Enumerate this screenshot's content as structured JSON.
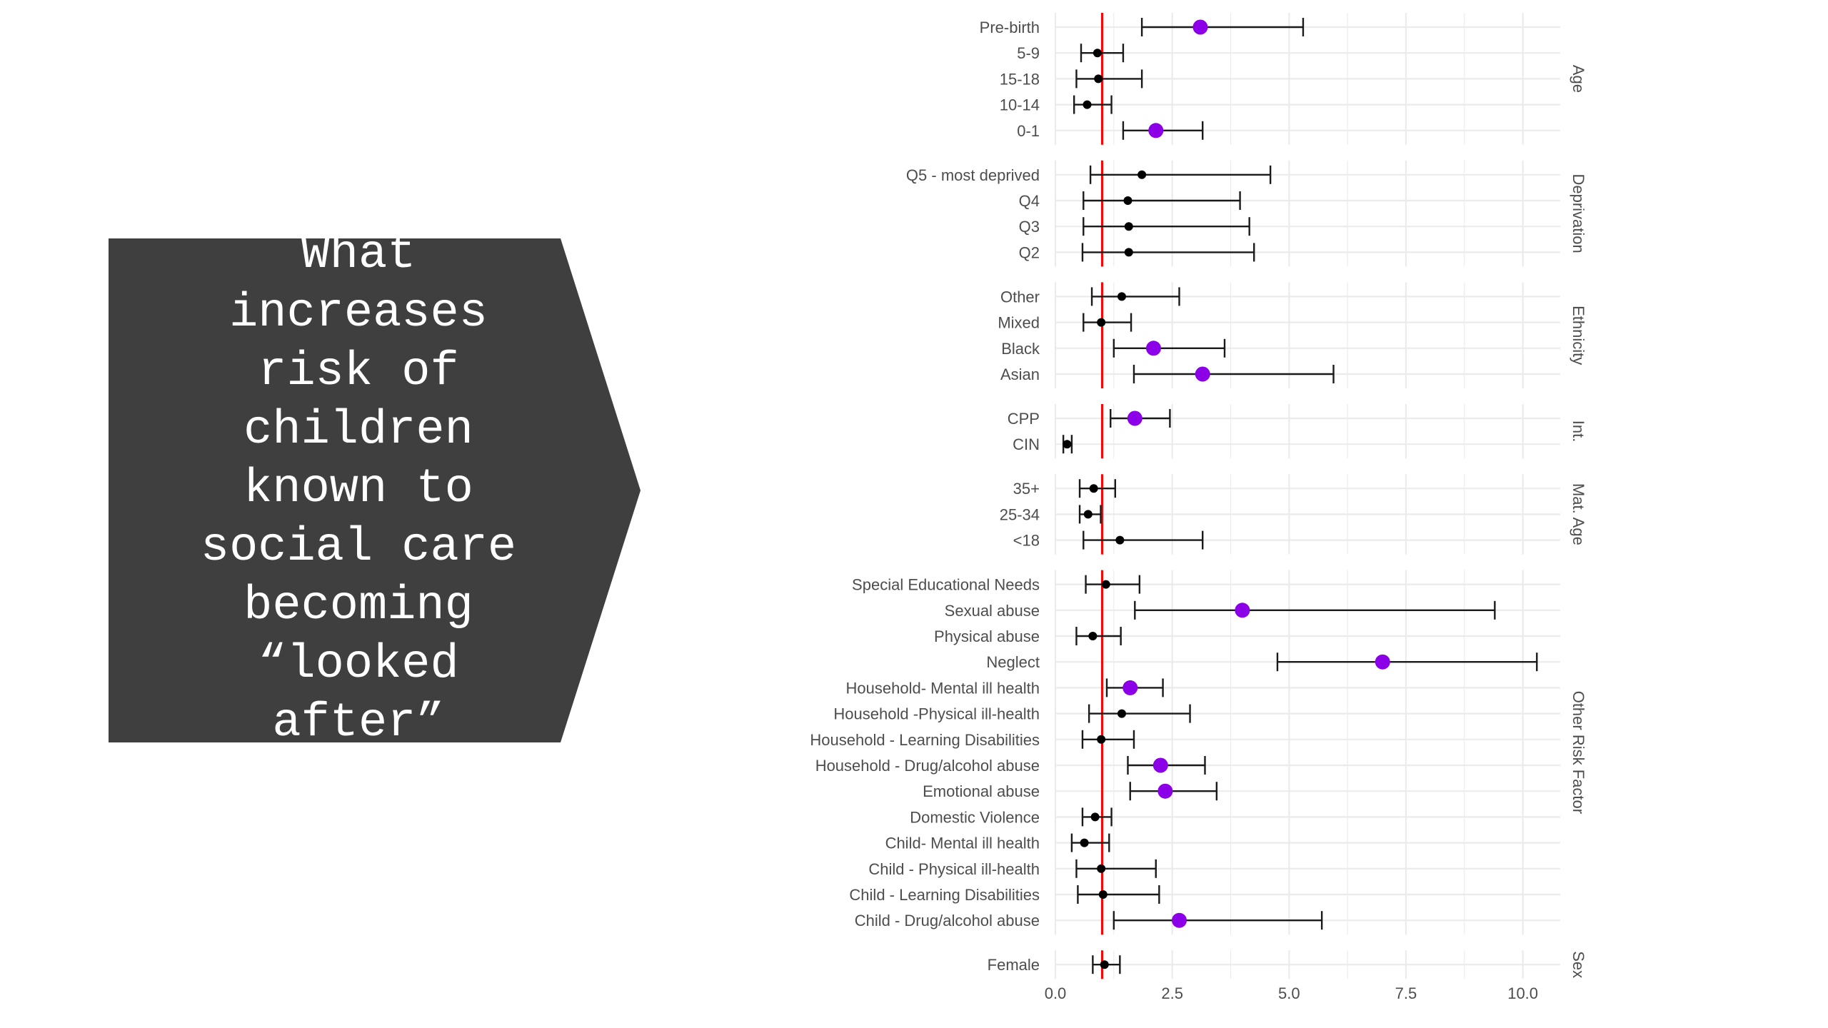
{
  "slide": {
    "title_text": "What\nincreases\nrisk of\nchildren\nknown to\nsocial care\nbecoming\n“looked\nafter”"
  },
  "colors": {
    "title_bg": "#3f3f3f",
    "title_fg": "#ffffff",
    "reference_line": "#ff0000",
    "significant_point": "#8b00e6",
    "nonsignificant_point": "#000000",
    "grid": "#ebebeb"
  },
  "chart_data": {
    "type": "scatter",
    "subtype": "forest-plot-with-error-bars",
    "title": "",
    "xlabel": "",
    "ylabel": "",
    "xlim": [
      0,
      10.8
    ],
    "x_ticks": [
      0.0,
      2.5,
      5.0,
      7.5,
      10.0
    ],
    "x_tick_labels": [
      "0.0",
      "2.5",
      "5.0",
      "7.5",
      "10.0"
    ],
    "reference_line_x": 1,
    "grid": true,
    "facets": [
      {
        "name": "Age",
        "rows": [
          {
            "label": "Pre-birth",
            "estimate": 3.1,
            "lower": 1.85,
            "upper": 5.3,
            "significant": true
          },
          {
            "label": "5-9",
            "estimate": 0.9,
            "lower": 0.55,
            "upper": 1.45,
            "significant": false
          },
          {
            "label": "15-18",
            "estimate": 0.92,
            "lower": 0.45,
            "upper": 1.85,
            "significant": false
          },
          {
            "label": "10-14",
            "estimate": 0.68,
            "lower": 0.4,
            "upper": 1.2,
            "significant": false
          },
          {
            "label": "0-1",
            "estimate": 2.15,
            "lower": 1.45,
            "upper": 3.15,
            "significant": true
          }
        ]
      },
      {
        "name": "Deprivation",
        "rows": [
          {
            "label": "Q5 - most deprived",
            "estimate": 1.85,
            "lower": 0.75,
            "upper": 4.6,
            "significant": false
          },
          {
            "label": "Q4",
            "estimate": 1.55,
            "lower": 0.6,
            "upper": 3.95,
            "significant": false
          },
          {
            "label": "Q3",
            "estimate": 1.57,
            "lower": 0.6,
            "upper": 4.15,
            "significant": false
          },
          {
            "label": "Q2",
            "estimate": 1.57,
            "lower": 0.58,
            "upper": 4.25,
            "significant": false
          }
        ]
      },
      {
        "name": "Ethnicity",
        "rows": [
          {
            "label": "Other",
            "estimate": 1.42,
            "lower": 0.78,
            "upper": 2.65,
            "significant": false
          },
          {
            "label": "Mixed",
            "estimate": 0.98,
            "lower": 0.6,
            "upper": 1.62,
            "significant": false
          },
          {
            "label": "Black",
            "estimate": 2.1,
            "lower": 1.25,
            "upper": 3.62,
            "significant": true
          },
          {
            "label": "Asian",
            "estimate": 3.15,
            "lower": 1.68,
            "upper": 5.95,
            "significant": true
          }
        ]
      },
      {
        "name": "Int.",
        "rows": [
          {
            "label": "CPP",
            "estimate": 1.7,
            "lower": 1.18,
            "upper": 2.45,
            "significant": true
          },
          {
            "label": "CIN",
            "estimate": 0.25,
            "lower": 0.17,
            "upper": 0.35,
            "significant": false
          }
        ]
      },
      {
        "name": "Mat. Age",
        "rows": [
          {
            "label": "35+",
            "estimate": 0.82,
            "lower": 0.52,
            "upper": 1.28,
            "significant": false
          },
          {
            "label": "25-34",
            "estimate": 0.7,
            "lower": 0.52,
            "upper": 0.97,
            "significant": false
          },
          {
            "label": "<18",
            "estimate": 1.38,
            "lower": 0.6,
            "upper": 3.15,
            "significant": false
          }
        ]
      },
      {
        "name": "Other Risk Factor",
        "rows": [
          {
            "label": "Special Educational Needs",
            "estimate": 1.08,
            "lower": 0.65,
            "upper": 1.8,
            "significant": false
          },
          {
            "label": "Sexual abuse",
            "estimate": 4.0,
            "lower": 1.7,
            "upper": 9.4,
            "significant": true
          },
          {
            "label": "Physical abuse",
            "estimate": 0.8,
            "lower": 0.45,
            "upper": 1.4,
            "significant": false
          },
          {
            "label": "Neglect",
            "estimate": 7.0,
            "lower": 4.75,
            "upper": 10.3,
            "significant": true
          },
          {
            "label": "Household- Mental ill health",
            "estimate": 1.6,
            "lower": 1.1,
            "upper": 2.3,
            "significant": true
          },
          {
            "label": "Household -Physical ill-health",
            "estimate": 1.42,
            "lower": 0.72,
            "upper": 2.88,
            "significant": false
          },
          {
            "label": "Household - Learning Disabilities",
            "estimate": 0.98,
            "lower": 0.58,
            "upper": 1.68,
            "significant": false
          },
          {
            "label": "Household - Drug/alcohol abuse",
            "estimate": 2.25,
            "lower": 1.55,
            "upper": 3.2,
            "significant": true
          },
          {
            "label": "Emotional abuse",
            "estimate": 2.35,
            "lower": 1.6,
            "upper": 3.45,
            "significant": true
          },
          {
            "label": "Domestic Violence",
            "estimate": 0.85,
            "lower": 0.58,
            "upper": 1.2,
            "significant": false
          },
          {
            "label": "Child- Mental ill health",
            "estimate": 0.62,
            "lower": 0.35,
            "upper": 1.15,
            "significant": false
          },
          {
            "label": "Child - Physical ill-health",
            "estimate": 0.98,
            "lower": 0.45,
            "upper": 2.15,
            "significant": false
          },
          {
            "label": "Child - Learning Disabilities",
            "estimate": 1.02,
            "lower": 0.48,
            "upper": 2.22,
            "significant": false
          },
          {
            "label": "Child - Drug/alcohol abuse",
            "estimate": 2.65,
            "lower": 1.25,
            "upper": 5.7,
            "significant": true
          }
        ]
      },
      {
        "name": "Sex",
        "rows": [
          {
            "label": "Female",
            "estimate": 1.05,
            "lower": 0.8,
            "upper": 1.38,
            "significant": false
          }
        ]
      }
    ]
  }
}
